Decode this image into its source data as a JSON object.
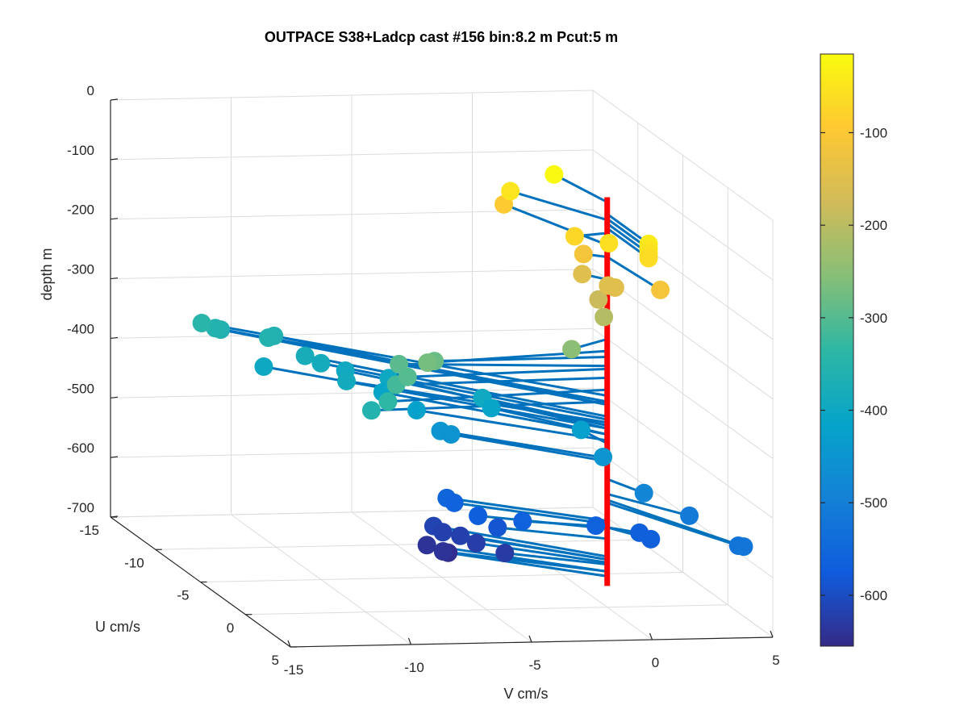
{
  "chart_data": {
    "type": "scatter",
    "title": "OUTPACE S38+Ladcp cast #156 bin:8.2 m  Pcut:5 m",
    "xlabel": "V cm/s",
    "ylabel": "U cm/s",
    "zlabel": "depth m",
    "xlim": [
      -15,
      5
    ],
    "ylim": [
      -15,
      5
    ],
    "zlim": [
      -700,
      0
    ],
    "x_ticks": [
      "-15",
      "-10",
      "-5",
      "0",
      "5"
    ],
    "y_ticks": [
      "-15",
      "-10",
      "-5",
      "0",
      "5"
    ],
    "z_ticks": [
      "0",
      "-100",
      "-200",
      "-300",
      "-400",
      "-500",
      "-600",
      "-700"
    ],
    "grid": true,
    "colorbar": {
      "colormap": "parula",
      "range": [
        -655,
        -15
      ],
      "ticks": [
        "-100",
        "-200",
        "-300",
        "-400",
        "-500",
        "-600"
      ]
    },
    "stick_color": "#0072BD",
    "axis_line_color": "#FF0000",
    "points": [
      {
        "v": -0.6,
        "u": -4.3,
        "depth": -20
      },
      {
        "v": 0.0,
        "u": 4.6,
        "depth": -40
      },
      {
        "v": 0.0,
        "u": 4.6,
        "depth": -48
      },
      {
        "v": 0.0,
        "u": 4.6,
        "depth": -56
      },
      {
        "v": 0.0,
        "u": 4.6,
        "depth": -64
      },
      {
        "v": -0.9,
        "u": 2.6,
        "depth": -60
      },
      {
        "v": -1.5,
        "u": 0.4,
        "depth": -72
      },
      {
        "v": -2.3,
        "u": -4.6,
        "depth": -50
      },
      {
        "v": -0.8,
        "u": -0.5,
        "depth": -112
      },
      {
        "v": -1.9,
        "u": -6.4,
        "depth": -92
      },
      {
        "v": -0.2,
        "u": 1.4,
        "depth": -148
      },
      {
        "v": 0.3,
        "u": 5.1,
        "depth": -112
      },
      {
        "v": -0.7,
        "u": -0.9,
        "depth": -150
      },
      {
        "v": -0.3,
        "u": 0.9,
        "depth": -150
      },
      {
        "v": -0.4,
        "u": 0.1,
        "depth": -182
      },
      {
        "v": -0.4,
        "u": 0.7,
        "depth": -205
      },
      {
        "v": -2.0,
        "u": 1.4,
        "depth": -250
      },
      {
        "v": -7.9,
        "u": 1.2,
        "depth": -270
      },
      {
        "v": -7.2,
        "u": 0.1,
        "depth": -280
      },
      {
        "v": -8.3,
        "u": -0.9,
        "depth": -295
      },
      {
        "v": -8.5,
        "u": 0.6,
        "depth": -300
      },
      {
        "v": -8.9,
        "u": 0.4,
        "depth": -315
      },
      {
        "v": -9.5,
        "u": 1.1,
        "depth": -335
      },
      {
        "v": -10.0,
        "u": 0.6,
        "depth": -355
      },
      {
        "v": -12.3,
        "u": -12.1,
        "depth": -345
      },
      {
        "v": -11.7,
        "u": -12.2,
        "depth": -355
      },
      {
        "v": -11.4,
        "u": -12.4,
        "depth": -360
      },
      {
        "v": -10.1,
        "u": -10.6,
        "depth": -355
      },
      {
        "v": -9.6,
        "u": -11.3,
        "depth": -360
      },
      {
        "v": -8.8,
        "u": -10.0,
        "depth": -380
      },
      {
        "v": -8.4,
        "u": -9.3,
        "depth": -385
      },
      {
        "v": -7.5,
        "u": -9.0,
        "depth": -395
      },
      {
        "v": -10.4,
        "u": -10.3,
        "depth": -400
      },
      {
        "v": -8.2,
        "u": -7.0,
        "depth": -390
      },
      {
        "v": -6.0,
        "u": -8.2,
        "depth": -400
      },
      {
        "v": -6.7,
        "u": -7.0,
        "depth": -410
      },
      {
        "v": -6.0,
        "u": -5.1,
        "depth": -420
      },
      {
        "v": -3.5,
        "u": -4.5,
        "depth": -395
      },
      {
        "v": -3.2,
        "u": -4.3,
        "depth": -410
      },
      {
        "v": -0.3,
        "u": -2.1,
        "depth": -425
      },
      {
        "v": -5.2,
        "u": -4.6,
        "depth": -450
      },
      {
        "v": -4.8,
        "u": -4.5,
        "depth": -455
      },
      {
        "v": -0.1,
        "u": -0.2,
        "depth": -450
      },
      {
        "v": 0.7,
        "u": 2.2,
        "depth": -485
      },
      {
        "v": 2.1,
        "u": 3.5,
        "depth": -510
      },
      {
        "v": 2.9,
        "u": 7.4,
        "depth": -520
      },
      {
        "v": 2.9,
        "u": 6.8,
        "depth": -525
      },
      {
        "v": -5.2,
        "u": -3.9,
        "depth": -555
      },
      {
        "v": -5.0,
        "u": -3.6,
        "depth": -560
      },
      {
        "v": -4.5,
        "u": -2.3,
        "depth": -568
      },
      {
        "v": -3.1,
        "u": -1.1,
        "depth": -565
      },
      {
        "v": -0.4,
        "u": -0.2,
        "depth": -565
      },
      {
        "v": 1.0,
        "u": 0.9,
        "depth": -566
      },
      {
        "v": 1.1,
        "u": 1.9,
        "depth": -566
      },
      {
        "v": -3.8,
        "u": -2.0,
        "depth": -585
      },
      {
        "v": -5.3,
        "u": -5.1,
        "depth": -615
      },
      {
        "v": -5.1,
        "u": -4.6,
        "depth": -620
      },
      {
        "v": -4.6,
        "u": -4.0,
        "depth": -620
      },
      {
        "v": -4.2,
        "u": -3.3,
        "depth": -625
      },
      {
        "v": -3.5,
        "u": -2.0,
        "depth": -628
      },
      {
        "v": -5.8,
        "u": -4.5,
        "depth": -640
      },
      {
        "v": -5.5,
        "u": -3.5,
        "depth": -640
      },
      {
        "v": -5.1,
        "u": -4.0,
        "depth": -648
      }
    ]
  }
}
